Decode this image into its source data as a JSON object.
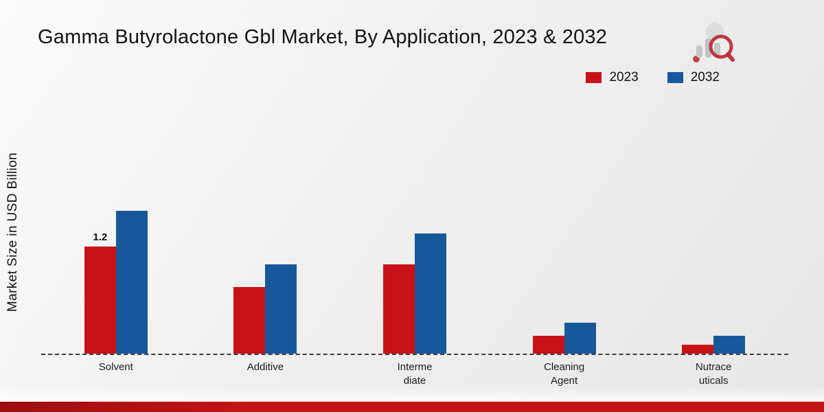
{
  "page": {
    "title": "Gamma Butyrolactone Gbl Market, By Application, 2023 & 2032",
    "ylabel": "Market Size in USD Billion",
    "colors": {
      "series_2023": "#c81217",
      "series_2032": "#17589a",
      "footer_left": "#9c0f10",
      "footer_right": "#c41314",
      "logo_gray": "#c3c3c3",
      "logo_red": "#b5121b"
    }
  },
  "chart_data": {
    "type": "bar",
    "title": "Gamma Butyrolactone Gbl Market, By Application, 2023 & 2032",
    "xlabel": "",
    "ylabel": "Market Size in USD Billion",
    "ylim": [
      0,
      2.0
    ],
    "grid": false,
    "legend_position": "top-right",
    "baseline_style": "dashed",
    "categories": [
      "Solvent",
      "Additive",
      "Intermediate",
      "Cleaning Agent",
      "Nutraceuticals"
    ],
    "category_label_lines": [
      [
        "Solvent"
      ],
      [
        "Additive"
      ],
      [
        "Interme",
        "diate"
      ],
      [
        "Cleaning",
        "Agent"
      ],
      [
        "Nutrace",
        "uticals"
      ]
    ],
    "series": [
      {
        "name": "2023",
        "color": "#c81217",
        "values": [
          1.2,
          0.75,
          1.0,
          0.2,
          0.1
        ]
      },
      {
        "name": "2032",
        "color": "#17589a",
        "values": [
          1.6,
          1.0,
          1.35,
          0.35,
          0.2
        ]
      }
    ],
    "data_labels": [
      {
        "series": "2023",
        "category": "Solvent",
        "text": "1.2"
      }
    ]
  }
}
